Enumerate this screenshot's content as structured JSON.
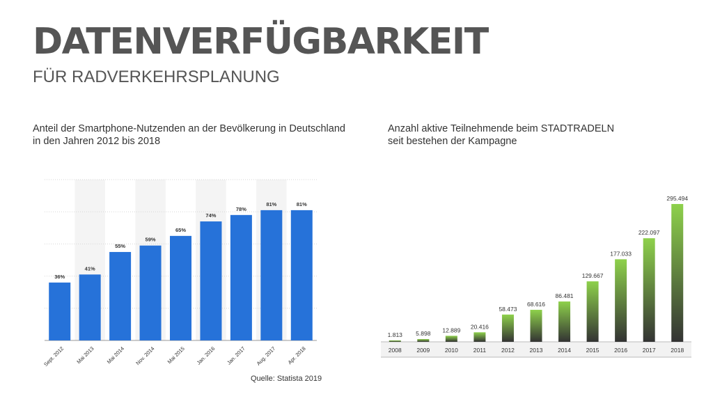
{
  "header": {
    "title": "DATENVERFÜGBARKEIT",
    "subtitle": "FÜR RADVERKEHRSPLANUNG"
  },
  "source": "Quelle: Statista 2019",
  "chart_data": [
    {
      "type": "bar",
      "caption_line1": "Anteil der Smartphone-Nutzenden an der Bevölkerung in Deutschland",
      "caption_line2": "in den Jahren 2012 bis 2018",
      "categories": [
        "Sept. 2012",
        "Mai 2013",
        "Mai 2014",
        "Nov. 2014",
        "Mai 2015",
        "Jan. 2016",
        "Jan. 2017",
        "Aug. 2017",
        "Apr. 2018"
      ],
      "values": [
        36,
        41,
        55,
        59,
        65,
        74,
        78,
        81,
        81
      ],
      "value_labels": [
        "36%",
        "41%",
        "55%",
        "59%",
        "65%",
        "74%",
        "78%",
        "81%",
        "81%"
      ],
      "ylim": [
        0,
        100
      ],
      "grid": true,
      "bar_color": "#2672d9"
    },
    {
      "type": "bar",
      "caption_line1": "Anzahl aktive Teilnehmende beim STADTRADELN",
      "caption_line2": "seit bestehen der Kampagne",
      "categories": [
        "2008",
        "2009",
        "2010",
        "2011",
        "2012",
        "2013",
        "2014",
        "2015",
        "2016",
        "2017",
        "2018"
      ],
      "values": [
        1813,
        5898,
        12889,
        20416,
        58473,
        68616,
        86481,
        129667,
        177033,
        222097,
        295494
      ],
      "value_labels": [
        "1.813",
        "5.898",
        "12.889",
        "20.416",
        "58.473",
        "68.616",
        "86.481",
        "129.667",
        "177.033",
        "222.097",
        "295.494"
      ],
      "ylim": [
        0,
        300000
      ],
      "grid": false,
      "bar_color_top": "#8ed14b",
      "bar_color_bottom": "#333333"
    }
  ]
}
